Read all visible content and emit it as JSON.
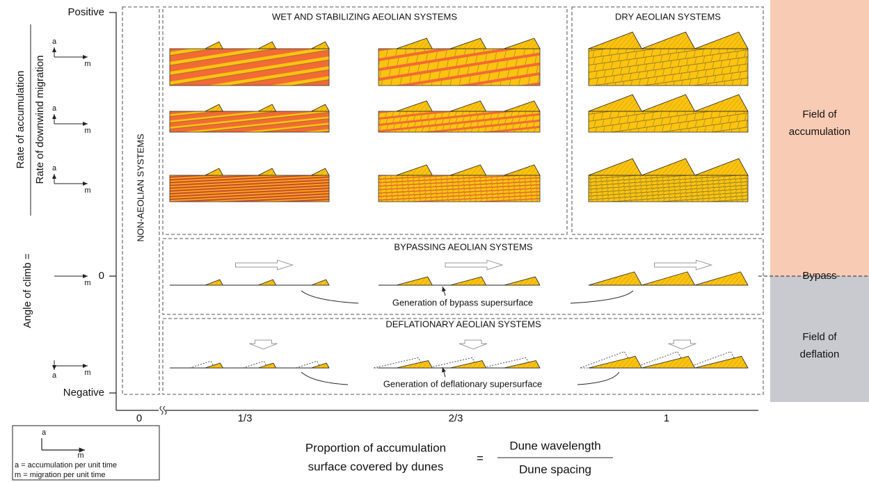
{
  "axis": {
    "positive": "Positive",
    "zero": "0",
    "negative": "Negative",
    "angle": "Angle of climb =",
    "numerator": "Rate of accumulation",
    "denominator": "Rate of downwind migration",
    "vector": {
      "a": "a",
      "m": "m"
    }
  },
  "panels": {
    "non_aeolian": "NON-AEOLIAN SYSTEMS",
    "wet": "WET AND STABILIZING AEOLIAN SYSTEMS",
    "dry": "DRY AEOLIAN SYSTEMS",
    "bypass": "BYPASSING AEOLIAN SYSTEMS",
    "deflation": "DEFLATIONARY AEOLIAN SYSTEMS"
  },
  "annotations": {
    "bypass": "Generation of bypass supersurface",
    "deflation": "Generation of deflationary supersurface"
  },
  "x_axis": {
    "ticks": [
      "0",
      "1/3",
      "2/3",
      "1"
    ],
    "label_line1": "Proportion of accumulation",
    "label_line2": "surface covered by dunes",
    "equals": "=",
    "numerator": "Dune wavelength",
    "denominator": "Dune spacing"
  },
  "legend": {
    "a": "a",
    "m": "m",
    "a_def": "a = accumulation per unit time",
    "m_def": "m = migration per unit time"
  },
  "fields": {
    "accumulation_1": "Field of",
    "accumulation_2": "accumulation",
    "bypass": "Bypass",
    "deflation_1": "Field of",
    "deflation_2": "deflation"
  }
}
